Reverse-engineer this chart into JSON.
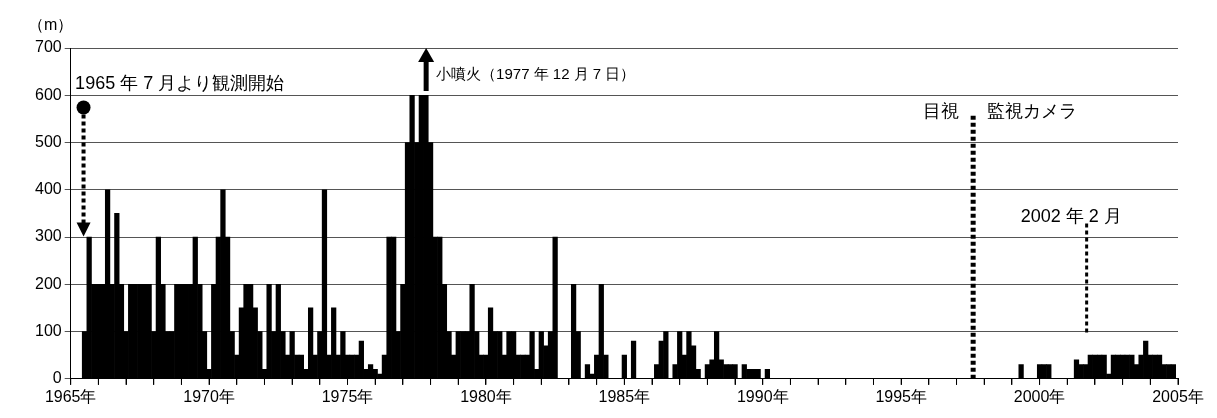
{
  "chart_data": {
    "type": "bar",
    "ylabel": "（m）",
    "legend": false,
    "grid": "y",
    "xlim": [
      1965,
      2005
    ],
    "ylim": [
      0,
      700
    ],
    "yticks": [
      0,
      100,
      200,
      300,
      400,
      500,
      600,
      700
    ],
    "xticks": [
      {
        "value": 1965,
        "label": "1965年"
      },
      {
        "value": 1966,
        "label": null
      },
      {
        "value": 1967,
        "label": null
      },
      {
        "value": 1968,
        "label": null
      },
      {
        "value": 1969,
        "label": null
      },
      {
        "value": 1970,
        "label": "1970年"
      },
      {
        "value": 1971,
        "label": null
      },
      {
        "value": 1972,
        "label": null
      },
      {
        "value": 1973,
        "label": null
      },
      {
        "value": 1974,
        "label": null
      },
      {
        "value": 1975,
        "label": "1975年"
      },
      {
        "value": 1976,
        "label": null
      },
      {
        "value": 1977,
        "label": null
      },
      {
        "value": 1978,
        "label": null
      },
      {
        "value": 1979,
        "label": null
      },
      {
        "value": 1980,
        "label": "1980年"
      },
      {
        "value": 1981,
        "label": null
      },
      {
        "value": 1982,
        "label": null
      },
      {
        "value": 1983,
        "label": null
      },
      {
        "value": 1984,
        "label": null
      },
      {
        "value": 1985,
        "label": "1985年"
      },
      {
        "value": 1986,
        "label": null
      },
      {
        "value": 1987,
        "label": null
      },
      {
        "value": 1988,
        "label": null
      },
      {
        "value": 1989,
        "label": null
      },
      {
        "value": 1990,
        "label": "1990年"
      },
      {
        "value": 1991,
        "label": null
      },
      {
        "value": 1992,
        "label": null
      },
      {
        "value": 1993,
        "label": null
      },
      {
        "value": 1994,
        "label": null
      },
      {
        "value": 1995,
        "label": "1995年"
      },
      {
        "value": 1996,
        "label": null
      },
      {
        "value": 1997,
        "label": null
      },
      {
        "value": 1998,
        "label": null
      },
      {
        "value": 1999,
        "label": null
      },
      {
        "value": 2000,
        "label": "2000年"
      },
      {
        "value": 2001,
        "label": null
      },
      {
        "value": 2002,
        "label": null
      },
      {
        "value": 2003,
        "label": null
      },
      {
        "value": 2004,
        "label": null
      },
      {
        "value": 2005,
        "label": "2005年"
      }
    ],
    "series": [
      {
        "color": "#000000",
        "x": [
          1965.5,
          1965.667,
          1965.833,
          1966,
          1966.167,
          1966.333,
          1966.5,
          1966.667,
          1966.833,
          1967,
          1967.167,
          1967.333,
          1967.5,
          1967.667,
          1967.833,
          1968,
          1968.167,
          1968.333,
          1968.5,
          1968.667,
          1968.833,
          1969,
          1969.167,
          1969.333,
          1969.5,
          1969.667,
          1969.833,
          1970,
          1970.167,
          1970.333,
          1970.5,
          1970.667,
          1970.833,
          1971,
          1971.167,
          1971.333,
          1971.5,
          1971.667,
          1971.833,
          1972,
          1972.167,
          1972.333,
          1972.5,
          1972.667,
          1972.833,
          1973,
          1973.167,
          1973.333,
          1973.5,
          1973.667,
          1973.833,
          1974,
          1974.167,
          1974.333,
          1974.5,
          1974.667,
          1974.833,
          1975,
          1975.167,
          1975.333,
          1975.5,
          1975.667,
          1975.833,
          1976,
          1976.167,
          1976.333,
          1976.5,
          1976.667,
          1976.833,
          1977,
          1977.167,
          1977.333,
          1977.5,
          1977.667,
          1977.833,
          1978,
          1978.167,
          1978.333,
          1978.5,
          1978.667,
          1978.833,
          1979,
          1979.167,
          1979.333,
          1979.5,
          1979.667,
          1979.833,
          1980,
          1980.167,
          1980.333,
          1980.5,
          1980.667,
          1980.833,
          1981,
          1981.167,
          1981.333,
          1981.5,
          1981.667,
          1981.833,
          1982,
          1982.167,
          1982.333,
          1982.5,
          1982.667,
          1982.833,
          1983,
          1983.167,
          1983.333,
          1983.5,
          1983.667,
          1983.833,
          1984,
          1984.167,
          1984.333,
          1984.5,
          1984.667,
          1984.833,
          1985,
          1985.167,
          1985.333,
          1985.5,
          1985.667,
          1985.833,
          1986,
          1986.167,
          1986.333,
          1986.5,
          1986.667,
          1986.833,
          1987,
          1987.167,
          1987.333,
          1987.5,
          1987.667,
          1987.833,
          1988,
          1988.167,
          1988.333,
          1988.5,
          1988.667,
          1988.833,
          1989,
          1989.167,
          1989.333,
          1989.5,
          1989.667,
          1989.833,
          1990,
          1990.167,
          1999.333,
          1999.5,
          1999.667,
          1999.833,
          2000,
          2000.167,
          2000.333,
          2000.5,
          2000.667,
          2000.833,
          2001,
          2001.167,
          2001.333,
          2001.5,
          2001.667,
          2001.833,
          2002,
          2002.167,
          2002.333,
          2002.5,
          2002.667,
          2002.833,
          2003,
          2003.167,
          2003.333,
          2003.5,
          2003.667,
          2003.833,
          2004,
          2004.167,
          2004.333,
          2004.5,
          2004.667,
          2004.833
        ],
        "values": [
          100,
          300,
          200,
          200,
          200,
          400,
          200,
          350,
          200,
          100,
          200,
          200,
          200,
          200,
          200,
          100,
          300,
          200,
          100,
          100,
          200,
          200,
          200,
          200,
          300,
          200,
          100,
          20,
          200,
          300,
          400,
          300,
          100,
          50,
          150,
          200,
          200,
          150,
          100,
          20,
          200,
          100,
          200,
          100,
          50,
          100,
          50,
          50,
          20,
          150,
          50,
          100,
          400,
          50,
          150,
          50,
          100,
          50,
          50,
          50,
          80,
          20,
          30,
          20,
          10,
          50,
          300,
          300,
          100,
          200,
          500,
          600,
          500,
          600,
          600,
          500,
          300,
          300,
          200,
          100,
          50,
          100,
          100,
          100,
          200,
          100,
          50,
          50,
          150,
          100,
          100,
          50,
          100,
          100,
          50,
          50,
          50,
          100,
          20,
          100,
          70,
          100,
          300,
          null,
          null,
          null,
          200,
          100,
          null,
          30,
          10,
          50,
          200,
          50,
          null,
          null,
          null,
          50,
          null,
          80,
          null,
          null,
          null,
          null,
          30,
          80,
          100,
          null,
          30,
          100,
          50,
          100,
          70,
          20,
          null,
          30,
          40,
          100,
          40,
          30,
          30,
          30,
          null,
          30,
          20,
          20,
          20,
          null,
          20,
          30,
          null,
          null,
          null,
          30,
          30,
          30,
          null,
          null,
          null,
          null,
          null,
          40,
          30,
          30,
          50,
          50,
          50,
          50,
          10,
          50,
          50,
          50,
          50,
          50,
          30,
          50,
          80,
          50,
          50,
          50,
          30,
          30,
          30
        ]
      }
    ],
    "ref_lines": [
      {
        "axis": "x",
        "value": 1997.6,
        "label": null,
        "color": "#000000",
        "line_style": "dotted"
      },
      {
        "axis": "x",
        "value": 2001.7,
        "label": null,
        "color": "#000000",
        "line_style": "dotted"
      }
    ],
    "annotations": [
      "1965 年 7 月より観測開始",
      "小噴火（1977 年 12 月 7 日）",
      {
        "text": "目視",
        "x": 1997.6,
        "y": 565
      },
      {
        "text": "監視カメラ",
        "x": 1997.6,
        "y": 565
      },
      "2002 年 2 月"
    ]
  }
}
